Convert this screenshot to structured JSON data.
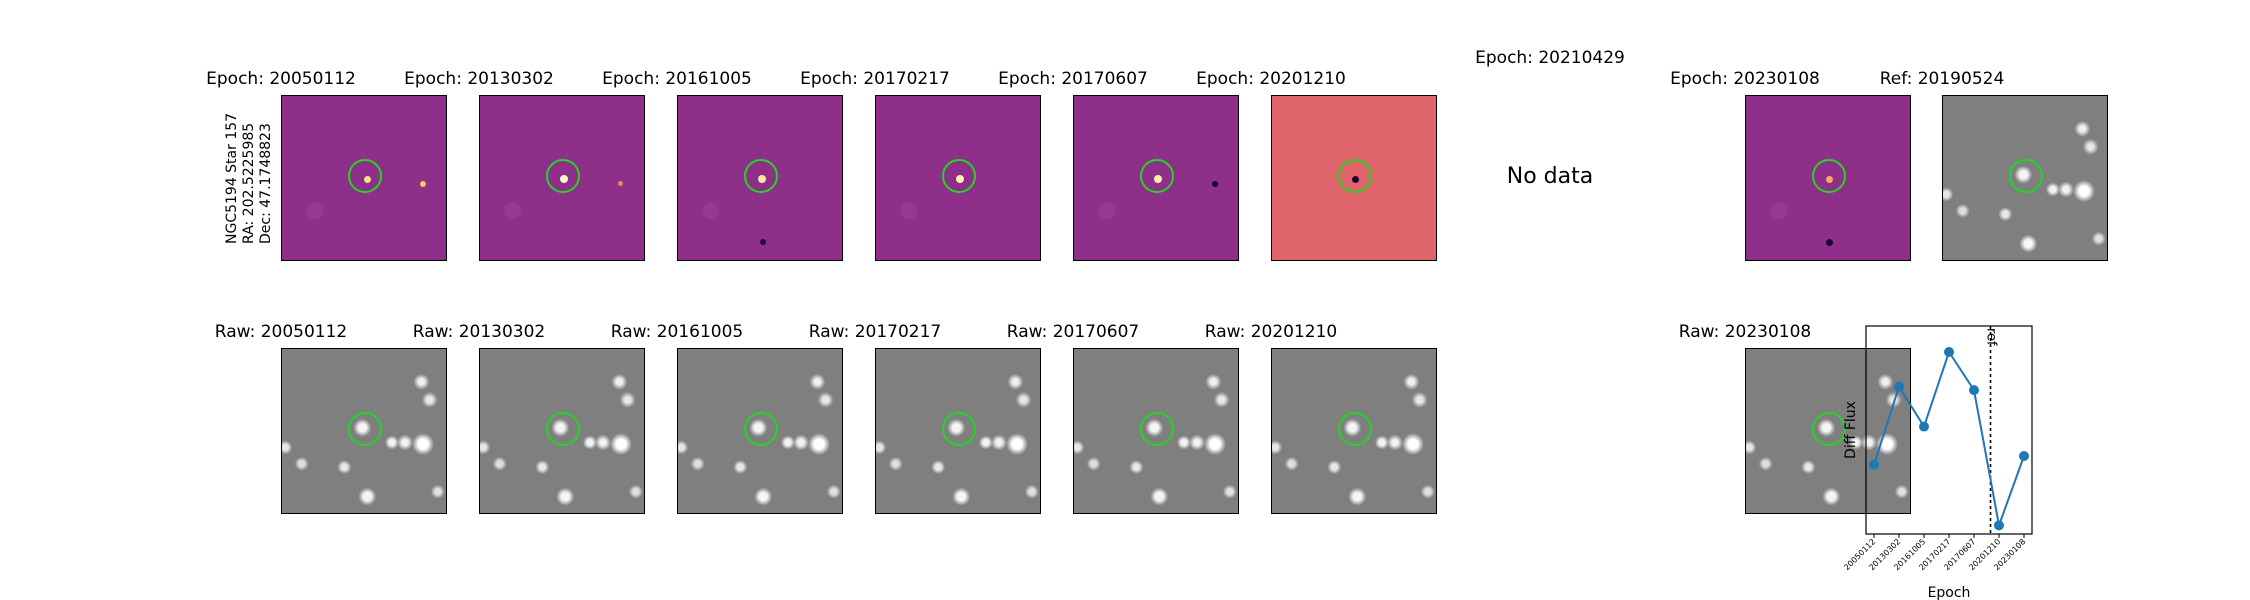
{
  "target": {
    "name": "NGC5194 Star 157",
    "ra": "RA: 202.5225985",
    "dec": "Dec: 47.1748823"
  },
  "diff_titles": [
    "Epoch: 20050112",
    "Epoch: 20130302",
    "Epoch: 20161005",
    "Epoch: 20170217",
    "Epoch: 20170607",
    "Epoch: 20201210",
    "Epoch: 20210429",
    "Epoch: 20230108"
  ],
  "ref_title": "Ref: 20190524",
  "no_data_text": "No data",
  "raw_titles": [
    "Raw: 20050112",
    "Raw: 20130302",
    "Raw: 20161005",
    "Raw: 20170217",
    "Raw: 20170607",
    "Raw: 20201210",
    "Raw: 20230108"
  ],
  "colors": {
    "marker": "#22d622",
    "series": "#1f77b4",
    "diff_bg": "#8e2f8a",
    "diff_bg_2020": "#e0656a",
    "raw_bg": "#7f7f7f"
  },
  "chart_data": {
    "type": "line",
    "title": "",
    "xlabel": "Epoch",
    "ylabel": "Diff Flux",
    "categories": [
      "20050112",
      "20130302",
      "20161005",
      "20170217",
      "20170607",
      "20201210",
      "20230108"
    ],
    "values": [
      0.3,
      0.75,
      0.52,
      0.95,
      0.73,
      -0.05,
      0.35
    ],
    "ylim": [
      -0.1,
      1.1
    ],
    "reference_line": {
      "label": "ref",
      "between": [
        "20170607",
        "20201210"
      ]
    },
    "grid": false
  }
}
